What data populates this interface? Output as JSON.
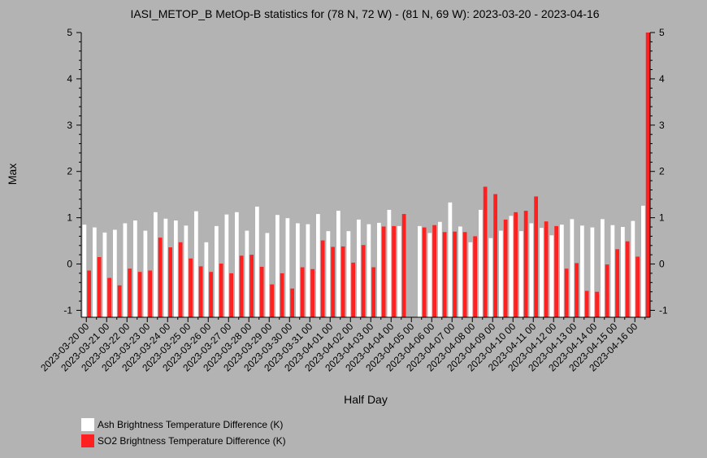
{
  "chart_data": {
    "type": "bar",
    "title": "IASI_METOP_B MetOp-B statistics for (78 N, 72 W) - (81 N, 69 W): 2023-03-20 - 2023-04-16",
    "xlabel": "Half Day",
    "ylabel": "Max",
    "ylim": [
      -1.15,
      5
    ],
    "yticks": [
      -1,
      0,
      1,
      2,
      3,
      4,
      5
    ],
    "grid": false,
    "legend_position": "bottom-left",
    "x_tick_labels": [
      "2023-03-20 00",
      "2023-03-21 00",
      "2023-03-22 00",
      "2023-03-23 00",
      "2023-03-24 00",
      "2023-03-25 00",
      "2023-03-26 00",
      "2023-03-27 00",
      "2023-03-28 00",
      "2023-03-29 00",
      "2023-03-30 00",
      "2023-03-31 00",
      "2023-04-01 00",
      "2023-04-02 00",
      "2023-04-03 00",
      "2023-04-04 00",
      "2023-04-05 00",
      "2023-04-06 00",
      "2023-04-07 00",
      "2023-04-08 00",
      "2023-04-09 00",
      "2023-04-10 00",
      "2023-04-11 00",
      "2023-04-12 00",
      "2023-04-13 00",
      "2023-04-14 00",
      "2023-04-15 00",
      "2023-04-16 00"
    ],
    "series": [
      {
        "name": "Ash Brightness Temperature Difference (K)",
        "color": "#ffffff",
        "values": [
          0.85,
          0.79,
          0.68,
          0.74,
          0.88,
          0.94,
          0.72,
          1.12,
          0.98,
          0.94,
          0.83,
          1.14,
          0.47,
          0.82,
          1.07,
          1.12,
          0.72,
          1.24,
          0.67,
          1.06,
          0.99,
          0.88,
          0.86,
          1.08,
          0.71,
          1.15,
          0.71,
          0.96,
          0.86,
          0.89,
          1.17,
          0.82,
          null,
          0.82,
          0.67,
          0.91,
          1.33,
          0.81,
          0.47,
          1.17,
          0.56,
          0.72,
          1.04,
          0.71,
          0.88,
          0.78,
          0.62,
          0.85,
          0.97,
          0.83,
          0.79,
          0.97,
          0.84,
          0.8,
          0.93,
          1.26
        ]
      },
      {
        "name": "SO2 Brightness Temperature Difference (K)",
        "color": "#ff2020",
        "values": [
          -0.14,
          0.15,
          -0.3,
          -0.46,
          -0.1,
          -0.17,
          -0.14,
          0.57,
          0.36,
          0.47,
          0.12,
          -0.05,
          -0.17,
          0.01,
          -0.2,
          0.18,
          0.2,
          -0.06,
          -0.44,
          -0.2,
          -0.53,
          -0.07,
          -0.11,
          0.51,
          0.37,
          0.38,
          0.03,
          0.41,
          -0.07,
          0.81,
          0.82,
          1.08,
          null,
          0.79,
          0.84,
          0.69,
          0.7,
          0.69,
          0.6,
          1.67,
          1.51,
          0.96,
          1.12,
          1.15,
          1.46,
          0.92,
          0.82,
          -0.1,
          0.02,
          -0.58,
          -0.6,
          -0.01,
          0.32,
          0.49,
          0.16,
          5.0
        ]
      }
    ]
  }
}
